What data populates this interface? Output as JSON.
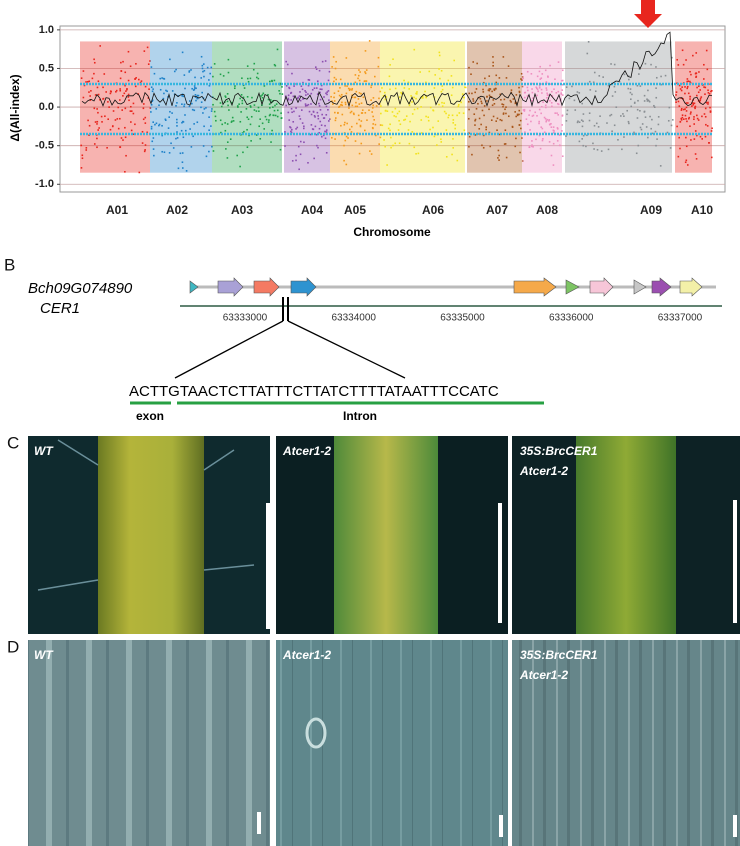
{
  "chart_data": {
    "type": "scatter",
    "y_label": "Δ(All-index)",
    "x_label": "Chromosome",
    "categories": [
      "A01",
      "A02",
      "A03",
      "A04",
      "A05",
      "A06",
      "A07",
      "A08",
      "A09",
      "A10"
    ],
    "colors": [
      "#e8261e",
      "#1f82c9",
      "#1fa14a",
      "#8c4fb0",
      "#f39a1c",
      "#f2e21b",
      "#a8561b",
      "#ee8fc0",
      "#8a8f93",
      "#e8261e"
    ],
    "ylim": [
      -1.1,
      1.05
    ],
    "yticks": [
      {
        "value": 1,
        "label": "1.0"
      },
      0.5,
      {
        "value": 0,
        "label": "0.0"
      },
      -0.5,
      {
        "value": -1,
        "label": "-1.0"
      }
    ],
    "grid": true
  },
  "panel_b": {
    "label": "B",
    "gene_id": "Bch09G074890",
    "gene_name": "CER1",
    "positions": [
      63333000,
      63334000,
      63335000,
      63336000,
      63337000
    ],
    "sequence": {
      "exon": "ACTT",
      "intron": "GTAACTCTTATTTCTTATCTTTTATAATTTCCATC"
    },
    "exon_label": "exon",
    "intron_label": "Intron"
  },
  "panel_c": {
    "label": "C",
    "images": [
      {
        "lines": [
          "WT"
        ]
      },
      {
        "lines": [
          "Atcer1-2"
        ]
      },
      {
        "lines": [
          "35S:BrcCER1",
          "Atcer1-2"
        ]
      }
    ]
  },
  "panel_d": {
    "label": "D",
    "images": [
      {
        "lines": [
          "WT"
        ]
      },
      {
        "lines": [
          "Atcer1-2"
        ]
      },
      {
        "lines": [
          "35S:BrcCER1",
          "Atcer1-2"
        ]
      }
    ]
  }
}
